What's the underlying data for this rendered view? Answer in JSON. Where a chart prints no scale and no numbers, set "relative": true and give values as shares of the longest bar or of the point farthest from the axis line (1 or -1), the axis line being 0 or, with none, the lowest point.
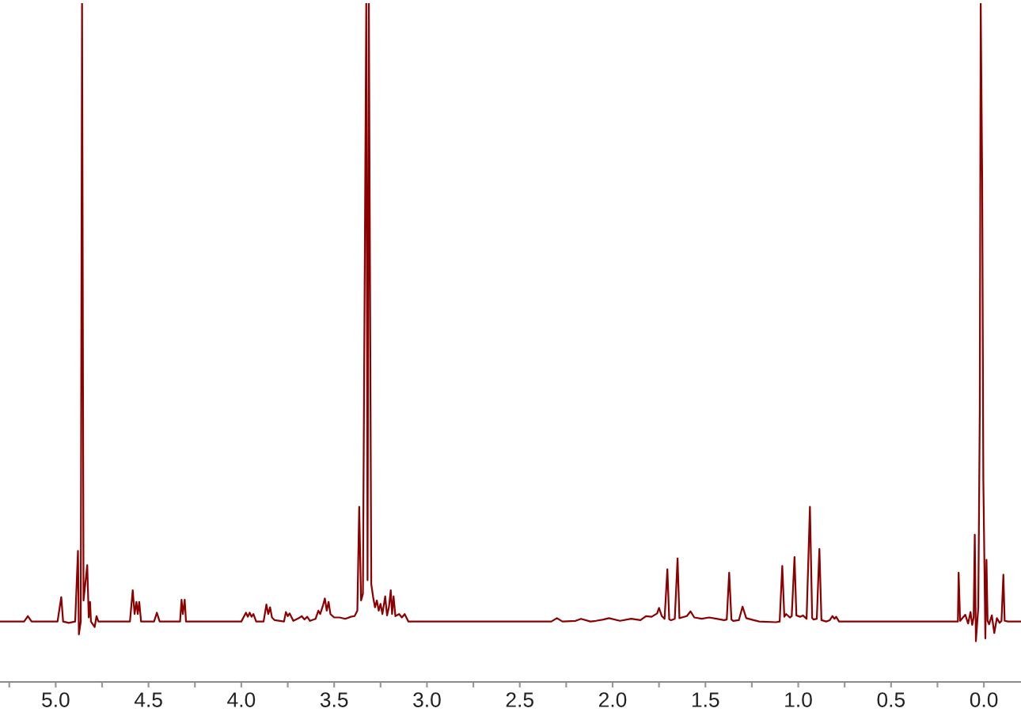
{
  "chart_data": {
    "type": "line",
    "relative": true,
    "xlim": [
      5.3,
      -0.2
    ],
    "xticks": [
      {
        "value": 5.25,
        "label": null
      },
      {
        "value": 5,
        "label": "5.0"
      },
      {
        "value": 4.75,
        "label": null
      },
      {
        "value": 4.5,
        "label": "4.5"
      },
      {
        "value": 4.25,
        "label": null
      },
      {
        "value": 4,
        "label": "4.0"
      },
      {
        "value": 3.75,
        "label": null
      },
      {
        "value": 3.5,
        "label": "3.5"
      },
      {
        "value": 3.25,
        "label": null
      },
      {
        "value": 3,
        "label": "3.0"
      },
      {
        "value": 2.75,
        "label": null
      },
      {
        "value": 2.5,
        "label": "2.5"
      },
      {
        "value": 2.25,
        "label": null
      },
      {
        "value": 2,
        "label": "2.0"
      },
      {
        "value": 1.75,
        "label": null
      },
      {
        "value": 1.5,
        "label": "1.5"
      },
      {
        "value": 1.25,
        "label": null
      },
      {
        "value": 1,
        "label": "1.0"
      },
      {
        "value": 0.75,
        "label": null
      },
      {
        "value": 0.5,
        "label": "0.5"
      },
      {
        "value": 0.25,
        "label": null
      },
      {
        "value": 0,
        "label": "0.0"
      }
    ],
    "series": [
      {
        "color": "#8b0000",
        "x": [
          5.3,
          5.17,
          5.15,
          5.13,
          4.99,
          4.97,
          4.96,
          4.93,
          4.895,
          4.88,
          4.875,
          4.865,
          4.858,
          4.85,
          4.83,
          4.822,
          4.815,
          4.81,
          4.79,
          4.78,
          4.77,
          4.75,
          4.6,
          4.585,
          4.575,
          4.565,
          4.558,
          4.55,
          4.54,
          4.47,
          4.455,
          4.44,
          4.33,
          4.322,
          4.315,
          4.305,
          4.298,
          4.0,
          3.975,
          3.965,
          3.955,
          3.945,
          3.935,
          3.92,
          3.88,
          3.865,
          3.855,
          3.845,
          3.835,
          3.82,
          3.77,
          3.76,
          3.75,
          3.74,
          3.72,
          3.69,
          3.675,
          3.66,
          3.645,
          3.63,
          3.6,
          3.585,
          3.575,
          3.56,
          3.55,
          3.54,
          3.53,
          3.52,
          3.5,
          3.47,
          3.44,
          3.41,
          3.39,
          3.375,
          3.365,
          3.355,
          3.345,
          3.327,
          3.32,
          3.313,
          3.3,
          3.29,
          3.28,
          3.27,
          3.26,
          3.25,
          3.24,
          3.225,
          3.215,
          3.205,
          3.195,
          3.188,
          3.18,
          3.17,
          3.15,
          3.135,
          3.12,
          3.1,
          2.33,
          2.3,
          2.27,
          2.2,
          2.17,
          2.12,
          2.09,
          2.05,
          2.02,
          1.96,
          1.9,
          1.85,
          1.82,
          1.79,
          1.76,
          1.75,
          1.735,
          1.72,
          1.705,
          1.695,
          1.685,
          1.665,
          1.65,
          1.64,
          1.6,
          1.58,
          1.56,
          1.52,
          1.48,
          1.44,
          1.4,
          1.385,
          1.372,
          1.36,
          1.35,
          1.32,
          1.3,
          1.28,
          1.24,
          1.21,
          1.12,
          1.1,
          1.086,
          1.075,
          1.065,
          1.045,
          1.035,
          1.02,
          1.01,
          0.99,
          0.975,
          0.955,
          0.937,
          0.925,
          0.918,
          0.9,
          0.886,
          0.875,
          0.85,
          0.83,
          0.816,
          0.805,
          0.796,
          0.78,
          0.2,
          0.14,
          0.136,
          0.128,
          0.1,
          0.085,
          0.072,
          0.063,
          0.055,
          0.049,
          0.043,
          0.03,
          0.022,
          0.017,
          0.009,
          0.003,
          -0.008,
          -0.014,
          -0.02,
          -0.028,
          -0.043,
          -0.056,
          -0.07,
          -0.085,
          -0.095,
          -0.105,
          -0.112,
          -0.13,
          -0.2
        ],
        "values": [
          0.089,
          0.089,
          0.097,
          0.089,
          0.089,
          0.125,
          0.089,
          0.087,
          0.089,
          0.193,
          0.07,
          0.089,
          1.0,
          0.12,
          0.172,
          0.095,
          0.118,
          0.089,
          0.081,
          0.097,
          0.089,
          0.089,
          0.089,
          0.135,
          0.1,
          0.118,
          0.1,
          0.118,
          0.089,
          0.089,
          0.102,
          0.089,
          0.089,
          0.121,
          0.1,
          0.121,
          0.089,
          0.089,
          0.102,
          0.096,
          0.102,
          0.096,
          0.1,
          0.089,
          0.089,
          0.114,
          0.1,
          0.11,
          0.095,
          0.091,
          0.089,
          0.103,
          0.097,
          0.101,
          0.09,
          0.094,
          0.097,
          0.092,
          0.096,
          0.09,
          0.093,
          0.105,
          0.1,
          0.113,
          0.123,
          0.105,
          0.118,
          0.1,
          0.095,
          0.095,
          0.093,
          0.096,
          0.097,
          0.105,
          0.258,
          0.12,
          0.13,
          1.0,
          0.15,
          1.0,
          0.144,
          0.125,
          0.11,
          0.12,
          0.105,
          0.115,
          0.1,
          0.126,
          0.098,
          0.11,
          0.135,
          0.1,
          0.126,
          0.097,
          0.1,
          0.095,
          0.1,
          0.089,
          0.089,
          0.094,
          0.089,
          0.09,
          0.093,
          0.089,
          0.09,
          0.092,
          0.094,
          0.09,
          0.093,
          0.091,
          0.097,
          0.096,
          0.101,
          0.109,
          0.097,
          0.093,
          0.166,
          0.092,
          0.091,
          0.093,
          0.182,
          0.094,
          0.097,
          0.104,
          0.095,
          0.093,
          0.095,
          0.093,
          0.091,
          0.092,
          0.161,
          0.092,
          0.09,
          0.091,
          0.111,
          0.094,
          0.091,
          0.089,
          0.088,
          0.089,
          0.171,
          0.096,
          0.1,
          0.095,
          0.097,
          0.184,
          0.098,
          0.096,
          0.098,
          0.093,
          0.258,
          0.094,
          0.092,
          0.093,
          0.196,
          0.091,
          0.089,
          0.091,
          0.097,
          0.093,
          0.096,
          0.089,
          0.089,
          0.089,
          0.161,
          0.09,
          0.099,
          0.086,
          0.103,
          0.084,
          0.095,
          0.217,
          0.06,
          0.11,
          0.4,
          1.0,
          0.738,
          0.3,
          0.064,
          0.18,
          0.09,
          0.085,
          0.098,
          0.072,
          0.094,
          0.087,
          0.09,
          0.158,
          0.09,
          0.089,
          0.089
        ]
      }
    ]
  }
}
